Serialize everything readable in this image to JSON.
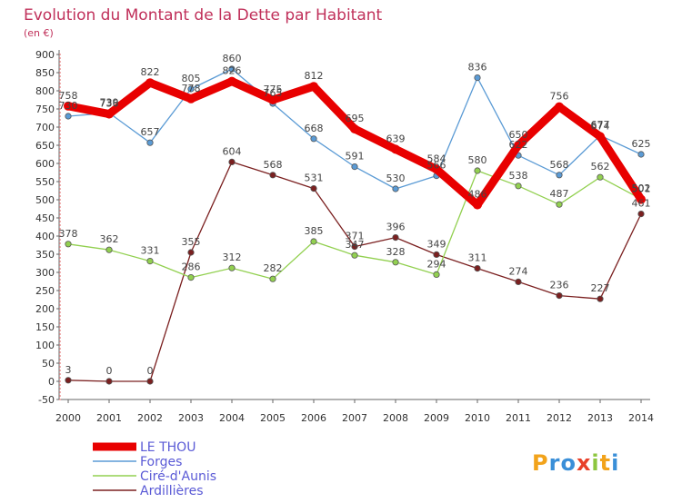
{
  "chart_data": {
    "type": "line",
    "title": "Evolution du Montant de la Dette par Habitant",
    "subtitle": "(en €)",
    "x": [
      "2000",
      "2001",
      "2002",
      "2003",
      "2004",
      "2005",
      "2006",
      "2007",
      "2008",
      "2009",
      "2010",
      "2011",
      "2012",
      "2013",
      "2014"
    ],
    "ylim": [
      -50,
      900
    ],
    "yticks": [
      -50,
      0,
      50,
      100,
      150,
      200,
      250,
      300,
      350,
      400,
      450,
      500,
      550,
      600,
      650,
      700,
      750,
      800,
      850,
      900
    ],
    "grid": false,
    "legend_position": "bottom-left",
    "series": [
      {
        "name": "LE THOU",
        "color": "#e80000",
        "values": [
          758,
          736,
          822,
          778,
          826,
          775,
          812,
          695,
          639,
          584,
          486,
          650,
          756,
          674,
          501
        ]
      },
      {
        "name": "Forges",
        "color": "#5b9bd5",
        "values": [
          730,
          739,
          657,
          805,
          860,
          765,
          668,
          591,
          530,
          566,
          836,
          622,
          568,
          677,
          625
        ]
      },
      {
        "name": "Ciré-d'Aunis",
        "color": "#92d050",
        "values": [
          378,
          362,
          331,
          286,
          312,
          282,
          385,
          347,
          328,
          294,
          580,
          538,
          487,
          562,
          502
        ]
      },
      {
        "name": "Ardillières",
        "color": "#7b2020",
        "values": [
          3,
          0,
          0,
          355,
          604,
          568,
          531,
          371,
          396,
          349,
          311,
          274,
          236,
          227,
          461
        ]
      }
    ]
  },
  "logo": {
    "text": "Proxiti"
  }
}
